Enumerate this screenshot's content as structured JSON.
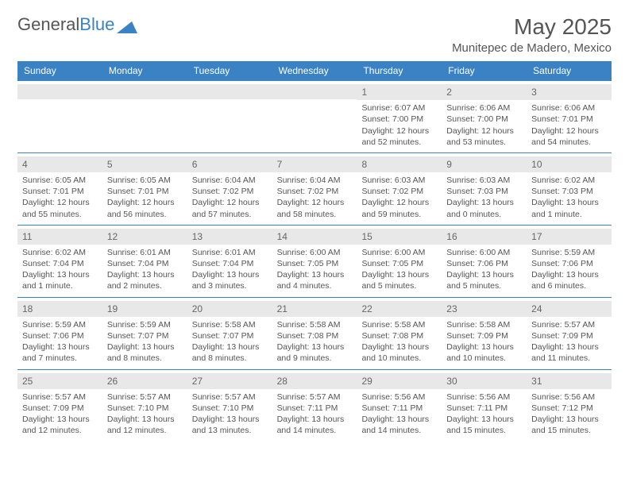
{
  "logo": {
    "word1": "General",
    "word2": "Blue"
  },
  "title": "May 2025",
  "location": "Munitepec de Madero, Mexico",
  "header_bg": "#3b82c4",
  "dow": [
    "Sunday",
    "Monday",
    "Tuesday",
    "Wednesday",
    "Thursday",
    "Friday",
    "Saturday"
  ],
  "weeks": [
    [
      {
        "n": "",
        "sr": "",
        "ss": "",
        "d1": "",
        "d2": ""
      },
      {
        "n": "",
        "sr": "",
        "ss": "",
        "d1": "",
        "d2": ""
      },
      {
        "n": "",
        "sr": "",
        "ss": "",
        "d1": "",
        "d2": ""
      },
      {
        "n": "",
        "sr": "",
        "ss": "",
        "d1": "",
        "d2": ""
      },
      {
        "n": "1",
        "sr": "Sunrise: 6:07 AM",
        "ss": "Sunset: 7:00 PM",
        "d1": "Daylight: 12 hours",
        "d2": "and 52 minutes."
      },
      {
        "n": "2",
        "sr": "Sunrise: 6:06 AM",
        "ss": "Sunset: 7:00 PM",
        "d1": "Daylight: 12 hours",
        "d2": "and 53 minutes."
      },
      {
        "n": "3",
        "sr": "Sunrise: 6:06 AM",
        "ss": "Sunset: 7:01 PM",
        "d1": "Daylight: 12 hours",
        "d2": "and 54 minutes."
      }
    ],
    [
      {
        "n": "4",
        "sr": "Sunrise: 6:05 AM",
        "ss": "Sunset: 7:01 PM",
        "d1": "Daylight: 12 hours",
        "d2": "and 55 minutes."
      },
      {
        "n": "5",
        "sr": "Sunrise: 6:05 AM",
        "ss": "Sunset: 7:01 PM",
        "d1": "Daylight: 12 hours",
        "d2": "and 56 minutes."
      },
      {
        "n": "6",
        "sr": "Sunrise: 6:04 AM",
        "ss": "Sunset: 7:02 PM",
        "d1": "Daylight: 12 hours",
        "d2": "and 57 minutes."
      },
      {
        "n": "7",
        "sr": "Sunrise: 6:04 AM",
        "ss": "Sunset: 7:02 PM",
        "d1": "Daylight: 12 hours",
        "d2": "and 58 minutes."
      },
      {
        "n": "8",
        "sr": "Sunrise: 6:03 AM",
        "ss": "Sunset: 7:02 PM",
        "d1": "Daylight: 12 hours",
        "d2": "and 59 minutes."
      },
      {
        "n": "9",
        "sr": "Sunrise: 6:03 AM",
        "ss": "Sunset: 7:03 PM",
        "d1": "Daylight: 13 hours",
        "d2": "and 0 minutes."
      },
      {
        "n": "10",
        "sr": "Sunrise: 6:02 AM",
        "ss": "Sunset: 7:03 PM",
        "d1": "Daylight: 13 hours",
        "d2": "and 1 minute."
      }
    ],
    [
      {
        "n": "11",
        "sr": "Sunrise: 6:02 AM",
        "ss": "Sunset: 7:04 PM",
        "d1": "Daylight: 13 hours",
        "d2": "and 1 minute."
      },
      {
        "n": "12",
        "sr": "Sunrise: 6:01 AM",
        "ss": "Sunset: 7:04 PM",
        "d1": "Daylight: 13 hours",
        "d2": "and 2 minutes."
      },
      {
        "n": "13",
        "sr": "Sunrise: 6:01 AM",
        "ss": "Sunset: 7:04 PM",
        "d1": "Daylight: 13 hours",
        "d2": "and 3 minutes."
      },
      {
        "n": "14",
        "sr": "Sunrise: 6:00 AM",
        "ss": "Sunset: 7:05 PM",
        "d1": "Daylight: 13 hours",
        "d2": "and 4 minutes."
      },
      {
        "n": "15",
        "sr": "Sunrise: 6:00 AM",
        "ss": "Sunset: 7:05 PM",
        "d1": "Daylight: 13 hours",
        "d2": "and 5 minutes."
      },
      {
        "n": "16",
        "sr": "Sunrise: 6:00 AM",
        "ss": "Sunset: 7:06 PM",
        "d1": "Daylight: 13 hours",
        "d2": "and 5 minutes."
      },
      {
        "n": "17",
        "sr": "Sunrise: 5:59 AM",
        "ss": "Sunset: 7:06 PM",
        "d1": "Daylight: 13 hours",
        "d2": "and 6 minutes."
      }
    ],
    [
      {
        "n": "18",
        "sr": "Sunrise: 5:59 AM",
        "ss": "Sunset: 7:06 PM",
        "d1": "Daylight: 13 hours",
        "d2": "and 7 minutes."
      },
      {
        "n": "19",
        "sr": "Sunrise: 5:59 AM",
        "ss": "Sunset: 7:07 PM",
        "d1": "Daylight: 13 hours",
        "d2": "and 8 minutes."
      },
      {
        "n": "20",
        "sr": "Sunrise: 5:58 AM",
        "ss": "Sunset: 7:07 PM",
        "d1": "Daylight: 13 hours",
        "d2": "and 8 minutes."
      },
      {
        "n": "21",
        "sr": "Sunrise: 5:58 AM",
        "ss": "Sunset: 7:08 PM",
        "d1": "Daylight: 13 hours",
        "d2": "and 9 minutes."
      },
      {
        "n": "22",
        "sr": "Sunrise: 5:58 AM",
        "ss": "Sunset: 7:08 PM",
        "d1": "Daylight: 13 hours",
        "d2": "and 10 minutes."
      },
      {
        "n": "23",
        "sr": "Sunrise: 5:58 AM",
        "ss": "Sunset: 7:09 PM",
        "d1": "Daylight: 13 hours",
        "d2": "and 10 minutes."
      },
      {
        "n": "24",
        "sr": "Sunrise: 5:57 AM",
        "ss": "Sunset: 7:09 PM",
        "d1": "Daylight: 13 hours",
        "d2": "and 11 minutes."
      }
    ],
    [
      {
        "n": "25",
        "sr": "Sunrise: 5:57 AM",
        "ss": "Sunset: 7:09 PM",
        "d1": "Daylight: 13 hours",
        "d2": "and 12 minutes."
      },
      {
        "n": "26",
        "sr": "Sunrise: 5:57 AM",
        "ss": "Sunset: 7:10 PM",
        "d1": "Daylight: 13 hours",
        "d2": "and 12 minutes."
      },
      {
        "n": "27",
        "sr": "Sunrise: 5:57 AM",
        "ss": "Sunset: 7:10 PM",
        "d1": "Daylight: 13 hours",
        "d2": "and 13 minutes."
      },
      {
        "n": "28",
        "sr": "Sunrise: 5:57 AM",
        "ss": "Sunset: 7:11 PM",
        "d1": "Daylight: 13 hours",
        "d2": "and 14 minutes."
      },
      {
        "n": "29",
        "sr": "Sunrise: 5:56 AM",
        "ss": "Sunset: 7:11 PM",
        "d1": "Daylight: 13 hours",
        "d2": "and 14 minutes."
      },
      {
        "n": "30",
        "sr": "Sunrise: 5:56 AM",
        "ss": "Sunset: 7:11 PM",
        "d1": "Daylight: 13 hours",
        "d2": "and 15 minutes."
      },
      {
        "n": "31",
        "sr": "Sunrise: 5:56 AM",
        "ss": "Sunset: 7:12 PM",
        "d1": "Daylight: 13 hours",
        "d2": "and 15 minutes."
      }
    ]
  ]
}
